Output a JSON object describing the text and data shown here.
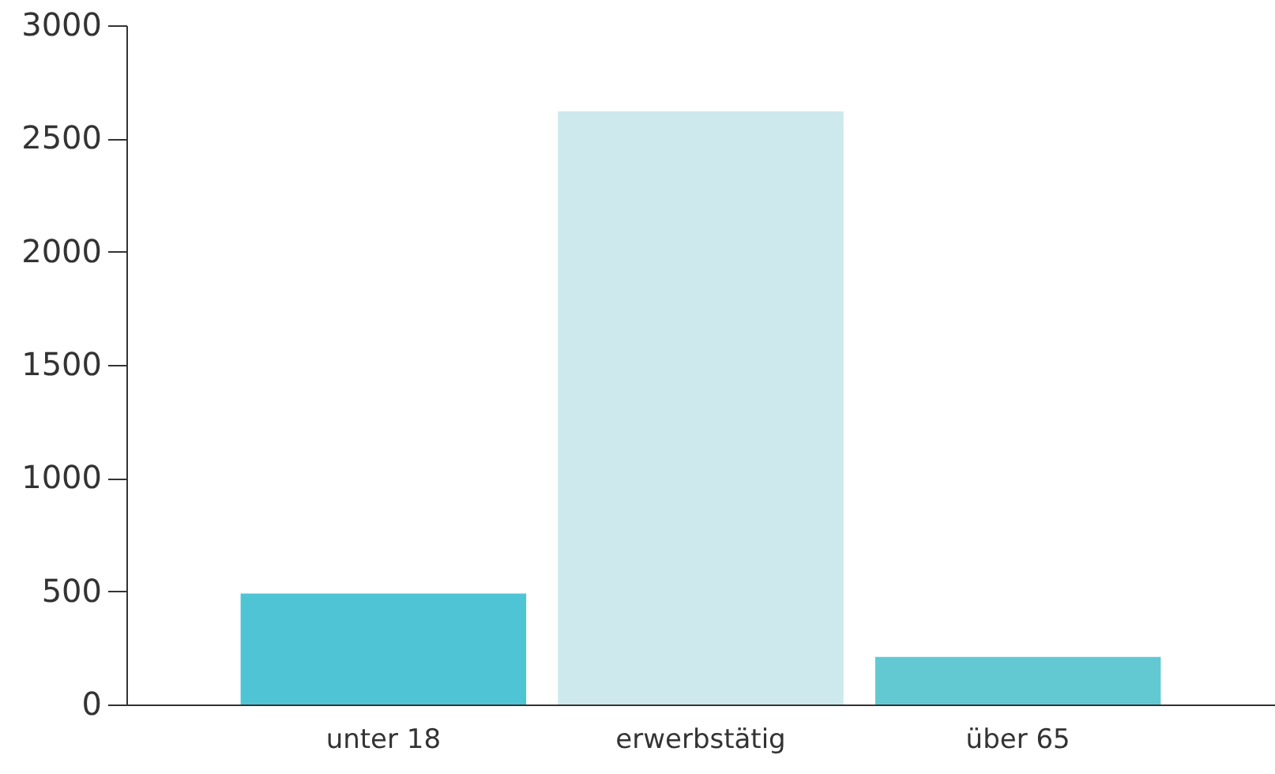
{
  "chart_data": {
    "type": "bar",
    "categories": [
      "unter 18",
      "erwerbstätig",
      "über 65"
    ],
    "values": [
      490,
      2620,
      210
    ],
    "colors": [
      "#4fc4d4",
      "#cde9ee",
      "#62c9d3"
    ],
    "ylim": [
      0,
      3000
    ],
    "yticks": [
      0,
      500,
      1000,
      1500,
      2000,
      2500,
      3000
    ],
    "grid": false
  }
}
